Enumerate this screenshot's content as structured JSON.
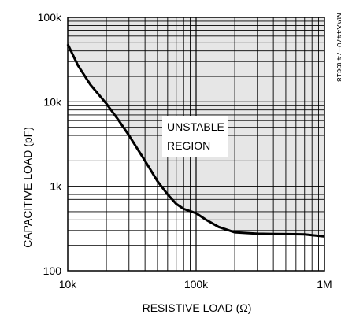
{
  "chart_data": {
    "type": "line",
    "title": "",
    "xlabel": "RESISTIVE LOAD (Ω)",
    "ylabel": "CAPACITIVE LOAD (pF)",
    "xscale": "log",
    "yscale": "log",
    "xlim": [
      10000,
      1000000
    ],
    "ylim": [
      100,
      100000
    ],
    "x_ticks": [
      {
        "value": 10000,
        "label": "10k"
      },
      {
        "value": 100000,
        "label": "100k"
      },
      {
        "value": 1000000,
        "label": "1M"
      }
    ],
    "y_ticks": [
      {
        "value": 100000,
        "label": "100k"
      },
      {
        "value": 10000,
        "label": "10k"
      },
      {
        "value": 1000,
        "label": "1k"
      },
      {
        "value": 100,
        "label": "100"
      }
    ],
    "grid": true,
    "series": [
      {
        "x": [
          10000,
          12000,
          15000,
          20000,
          25000,
          30000,
          40000,
          50000,
          60000,
          70000,
          80000,
          100000,
          120000,
          150000,
          200000,
          300000,
          400000,
          500000,
          700000,
          1000000
        ],
        "y": [
          48000,
          27000,
          16000,
          9500,
          6000,
          4000,
          2000,
          1150,
          800,
          620,
          540,
          480,
          400,
          330,
          285,
          275,
          273,
          272,
          270,
          255
        ],
        "color": "#000000"
      }
    ],
    "shaded_region": {
      "label": "UNSTABLE\nREGION",
      "line1": "UNSTABLE",
      "line2": "REGION",
      "color": "#e6e6e6"
    },
    "side_note": "MAX4470–74 toc18"
  }
}
